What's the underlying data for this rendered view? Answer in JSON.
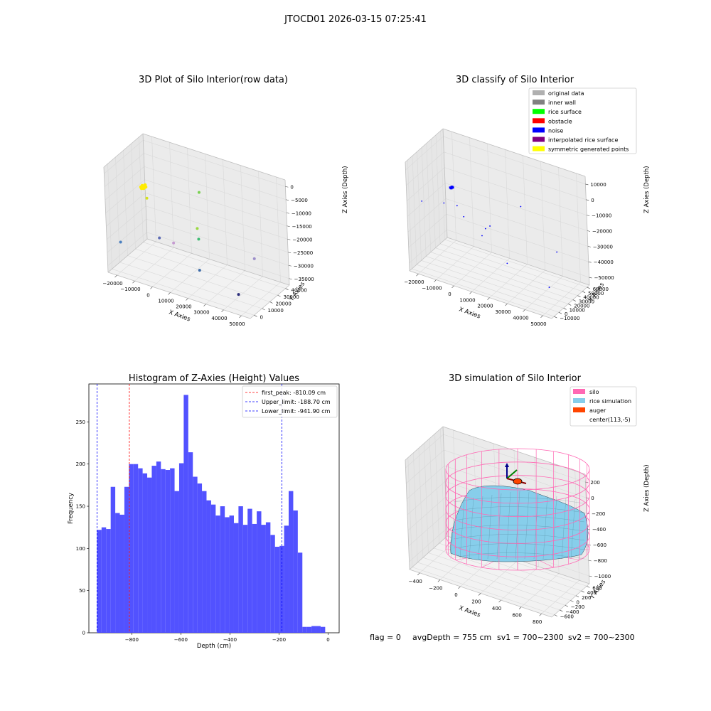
{
  "suptitle": "JTOCD01 2026-03-15 07:25:41",
  "status_line": {
    "flag": "flag = 0",
    "avg_depth": "avgDepth = 755 cm",
    "sv1": "sv1 = 700~2300",
    "sv2": "sv2 = 700~2300"
  },
  "colors": {
    "hist_bar": "#4c4cff",
    "first_peak": "#ff0000",
    "limits": "#0000ff",
    "silo": "#ff69b4",
    "rice": "#87ceeb",
    "auger": "#ff4500",
    "inner_wall": "#808080",
    "original": "#b0b0b0",
    "rice_surface": "#00ff00",
    "obstacle": "#ff0000",
    "noise": "#0000ff",
    "interp": "#800080",
    "symmetric": "#ffff00"
  },
  "chart_data": [
    {
      "type": "scatter",
      "title": "3D Plot of Silo Interior(row data)",
      "xlabel": "X Axies",
      "ylabel": "Y Axies",
      "zlabel": "Z Axies (Depth)",
      "x_ticks": [
        "−20000",
        "−10000",
        "0",
        "10000",
        "20000",
        "30000",
        "40000",
        "50000"
      ],
      "y_ticks": [
        "0",
        "10000",
        "20000",
        "30000",
        "40000"
      ],
      "z_ticks": [
        "0",
        "−5000",
        "−10000",
        "−15000",
        "−20000",
        "−25000",
        "−30000",
        "−35000"
      ],
      "points": [
        {
          "x": -20000,
          "y": 35000,
          "z": -14000,
          "c": "#ffeb00",
          "cluster": true
        },
        {
          "x": -17000,
          "y": 32000,
          "z": -17000,
          "c": "#d4e21a"
        },
        {
          "x": -20000,
          "y": 5000,
          "z": -28000,
          "c": "#4a7fbf"
        },
        {
          "x": -5000,
          "y": 20000,
          "z": -27000,
          "c": "#5d6bb5"
        },
        {
          "x": 10000,
          "y": 38000,
          "z": -10000,
          "c": "#7ad151"
        },
        {
          "x": 12000,
          "y": 30000,
          "z": -22000,
          "c": "#9ad83f"
        },
        {
          "x": 14000,
          "y": 27000,
          "z": -25000,
          "c": "#3fbc73"
        },
        {
          "x": 2000,
          "y": 22000,
          "z": -28000,
          "c": "#c59bd1"
        },
        {
          "x": 40000,
          "y": 38000,
          "z": -30000,
          "c": "#9c8ec9"
        },
        {
          "x": 22000,
          "y": 10000,
          "z": -31000,
          "c": "#3b6aa8"
        },
        {
          "x": 47000,
          "y": 3000,
          "z": -33000,
          "c": "#2b2d7a"
        }
      ]
    },
    {
      "type": "scatter",
      "title": "3D classify of Silo Interior",
      "xlabel": "X Axies",
      "ylabel": "Y Axies",
      "zlabel": "Z Axies (Depth)",
      "x_ticks": [
        "−20000",
        "−10000",
        "0",
        "10000",
        "20000",
        "30000",
        "40000",
        "50000"
      ],
      "y_ticks": [
        "−10000",
        "0",
        "10000",
        "20000",
        "30000",
        "40000",
        "50000",
        "60000"
      ],
      "z_ticks": [
        "10000",
        "0",
        "−10000",
        "−20000",
        "−30000",
        "−40000",
        "−50000"
      ],
      "legend": [
        "original data",
        "inner wall",
        "rice surface",
        "obstacle",
        "noise",
        "interpolated rice surface",
        "symmetric generated points"
      ],
      "points": [
        {
          "x": -13000,
          "y": 38000,
          "z": -12000,
          "c": "#0000ff",
          "cluster": true
        },
        {
          "x": -28000,
          "y": 30000,
          "z": -25000,
          "c": "#0000ff"
        },
        {
          "x": -16000,
          "y": 32000,
          "z": -22000,
          "c": "#0000ff"
        },
        {
          "x": -8000,
          "y": 30000,
          "z": -20000,
          "c": "#0000ff"
        },
        {
          "x": -3000,
          "y": 25000,
          "z": -24000,
          "c": "#0000ff"
        },
        {
          "x": 24000,
          "y": 45000,
          "z": -12000,
          "c": "#0000ff"
        },
        {
          "x": 10000,
          "y": 22000,
          "z": -26000,
          "c": "#0000ff"
        },
        {
          "x": 12000,
          "y": 24000,
          "z": -24000,
          "c": "#0000ff"
        },
        {
          "x": 9000,
          "y": 18000,
          "z": -30000,
          "c": "#0000ff"
        },
        {
          "x": 45000,
          "y": 40000,
          "z": -33000,
          "c": "#0000ff"
        },
        {
          "x": 25000,
          "y": 10000,
          "z": -40000,
          "c": "#0000ff"
        },
        {
          "x": 49000,
          "y": 8000,
          "z": -46000,
          "c": "#0000ff"
        }
      ]
    },
    {
      "type": "bar",
      "title": "Histogram of Z-Axies (Height) Values",
      "xlabel": "Depth (cm)",
      "ylabel": "Frequency",
      "xlim": [
        -975,
        45
      ],
      "ylim": [
        0,
        295
      ],
      "x_ticks": [
        -800,
        -600,
        -400,
        -200,
        0
      ],
      "y_ticks": [
        0,
        50,
        100,
        150,
        200,
        250
      ],
      "bin_start": -941.9,
      "bin_width": 18.6,
      "values": [
        122,
        125,
        123,
        173,
        142,
        140,
        173,
        200,
        200,
        195,
        189,
        184,
        198,
        203,
        194,
        193,
        195,
        168,
        201,
        282,
        214,
        185,
        177,
        168,
        157,
        152,
        139,
        150,
        137,
        139,
        130,
        150,
        128,
        147,
        129,
        144,
        128,
        131,
        116,
        102,
        103,
        127,
        168,
        145,
        95,
        7,
        7,
        8,
        8,
        7
      ],
      "vlines": [
        {
          "name": "first_peak: -810.09 cm",
          "value": -810.09,
          "color_key": "first_peak"
        },
        {
          "name": "Upper_limit: -188.70 cm",
          "value": -188.7,
          "color_key": "limits"
        },
        {
          "name": "Lower_limit: -941.90 cm",
          "value": -941.9,
          "color_key": "limits"
        }
      ]
    },
    {
      "type": "surface",
      "title": "3D simulation of Silo Interior",
      "xlabel": "X Axies",
      "ylabel": "Y Axies",
      "zlabel": "Z Axies (Depth)",
      "x_ticks": [
        "−400",
        "−200",
        "0",
        "200",
        "400",
        "600",
        "800"
      ],
      "y_ticks": [
        "−600",
        "−400",
        "−200",
        "0",
        "200",
        "400",
        "600"
      ],
      "z_ticks": [
        "200",
        "0",
        "−200",
        "−400",
        "−600",
        "−800",
        "−1000"
      ],
      "legend": [
        "silo",
        "rice simulation",
        "auger",
        "center(113,-5)"
      ]
    }
  ]
}
